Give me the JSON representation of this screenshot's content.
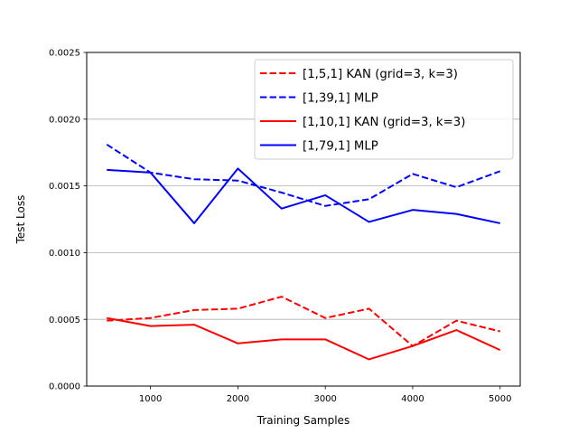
{
  "chart_data": {
    "type": "line",
    "title": "",
    "xlabel": "Training Samples",
    "ylabel": "Test Loss",
    "xlim": [
      270,
      5230
    ],
    "ylim": [
      0,
      0.0025
    ],
    "x_ticks": [
      1000,
      2000,
      3000,
      4000,
      5000
    ],
    "x_tick_labels": [
      "1000",
      "2000",
      "3000",
      "4000",
      "5000"
    ],
    "y_ticks": [
      0,
      0.0005,
      0.001,
      0.0015,
      0.002,
      0.0025
    ],
    "y_tick_labels": [
      "0.0000",
      "0.0005",
      "0.0010",
      "0.0015",
      "0.0020",
      "0.0025"
    ],
    "grid": "horizontal",
    "legend_position": "top-right",
    "x": [
      500,
      1000,
      1500,
      2000,
      2500,
      3000,
      3500,
      4000,
      4500,
      5000
    ],
    "series": [
      {
        "name": "[1,5,1] KAN (grid=3, k=3)",
        "color": "#ff0000",
        "style": "dashed",
        "values": [
          0.00049,
          0.00051,
          0.00057,
          0.00058,
          0.00067,
          0.00051,
          0.00058,
          0.0003,
          0.00049,
          0.00041
        ]
      },
      {
        "name": "[1,39,1] MLP",
        "color": "#0000ff",
        "style": "dashed",
        "values": [
          0.00181,
          0.0016,
          0.00155,
          0.00154,
          0.00145,
          0.00135,
          0.0014,
          0.00159,
          0.00149,
          0.00161
        ]
      },
      {
        "name": "[1,10,1] KAN (grid=3, k=3)",
        "color": "#ff0000",
        "style": "solid",
        "values": [
          0.00051,
          0.00045,
          0.00046,
          0.00032,
          0.00035,
          0.00035,
          0.0002,
          0.0003,
          0.00042,
          0.00027
        ]
      },
      {
        "name": "[1,79,1] MLP",
        "color": "#0000ff",
        "style": "solid",
        "values": [
          0.00162,
          0.0016,
          0.00122,
          0.00163,
          0.00133,
          0.00143,
          0.00123,
          0.00132,
          0.00129,
          0.00122
        ]
      }
    ]
  }
}
